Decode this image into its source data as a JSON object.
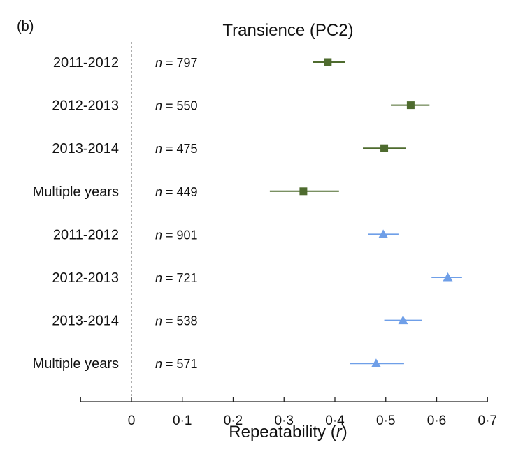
{
  "chart_data": {
    "type": "scatter",
    "panel_label": "(b)",
    "title": "Transience (PC2)",
    "xlabel": {
      "main": "Repeatability (",
      "italic": "r",
      "tail": ")"
    },
    "xlim": [
      -0.1,
      0.7
    ],
    "xticks": [
      {
        "value": 0,
        "label": "0"
      },
      {
        "value": 0.1,
        "label": "0·1"
      },
      {
        "value": 0.2,
        "label": "0·2"
      },
      {
        "value": 0.3,
        "label": "0·3"
      },
      {
        "value": 0.4,
        "label": "0·4"
      },
      {
        "value": 0.5,
        "label": "0·5"
      },
      {
        "value": 0.6,
        "label": "0·6"
      },
      {
        "value": 0.7,
        "label": "0·7"
      }
    ],
    "reference_line_x": 0,
    "n_prefix": "n",
    "n_equals": " = ",
    "colors": {
      "green": "#4e6b2e",
      "blue": "#6f9fe8",
      "axis": "#222222",
      "refline": "#777777"
    },
    "series": [
      {
        "marker": "square",
        "color": "#4e6b2e",
        "points": [
          {
            "label": "2011-2012",
            "n": "797",
            "estimate": 0.386,
            "ci_low": 0.357,
            "ci_high": 0.42
          },
          {
            "label": "2012-2013",
            "n": "550",
            "estimate": 0.549,
            "ci_low": 0.51,
            "ci_high": 0.586
          },
          {
            "label": "2013-2014",
            "n": "475",
            "estimate": 0.497,
            "ci_low": 0.455,
            "ci_high": 0.54
          },
          {
            "label": "Multiple years",
            "n": "449",
            "estimate": 0.338,
            "ci_low": 0.272,
            "ci_high": 0.408
          }
        ]
      },
      {
        "marker": "triangle",
        "color": "#6f9fe8",
        "points": [
          {
            "label": "2011-2012",
            "n": "901",
            "estimate": 0.495,
            "ci_low": 0.465,
            "ci_high": 0.525
          },
          {
            "label": "2012-2013",
            "n": "721",
            "estimate": 0.622,
            "ci_low": 0.59,
            "ci_high": 0.65
          },
          {
            "label": "2013-2014",
            "n": "538",
            "estimate": 0.534,
            "ci_low": 0.497,
            "ci_high": 0.571
          },
          {
            "label": "Multiple years",
            "n": "571",
            "estimate": 0.481,
            "ci_low": 0.43,
            "ci_high": 0.536
          }
        ]
      }
    ]
  }
}
